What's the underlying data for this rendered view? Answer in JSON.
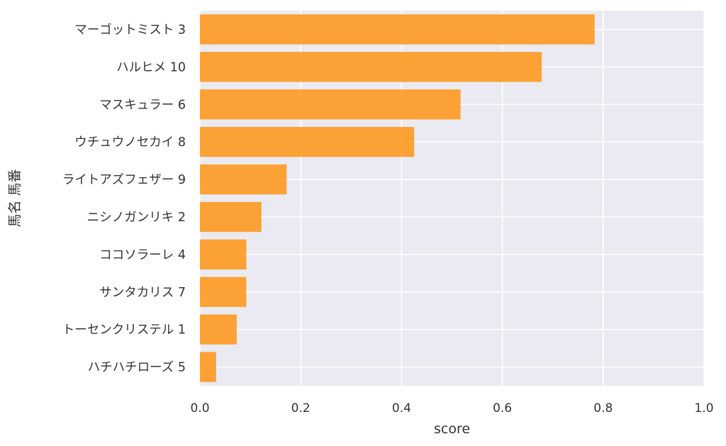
{
  "chart_data": {
    "type": "bar",
    "orientation": "horizontal",
    "categories": [
      "マーゴットミスト 3",
      "ハルヒメ 10",
      "マスキュラー 6",
      "ウチュウノセカイ 8",
      "ライトアズフェザー 9",
      "ニシノガンリキ 2",
      "ココソラーレ 4",
      "サンタカリス 7",
      "トーセンクリステル 1",
      "ハチハチローズ 5"
    ],
    "values": [
      0.783,
      0.678,
      0.517,
      0.425,
      0.172,
      0.122,
      0.092,
      0.092,
      0.073,
      0.032
    ],
    "xlabel": "score",
    "ylabel": "馬名 馬番",
    "xlim": [
      0.0,
      1.0
    ],
    "xticks": [
      "0.0",
      "0.2",
      "0.4",
      "0.6",
      "0.8",
      "1.0"
    ],
    "grid": true,
    "bar_color": "#ff8c00",
    "plot_background": "#eaeaf2",
    "grid_color": "#ffffff"
  }
}
